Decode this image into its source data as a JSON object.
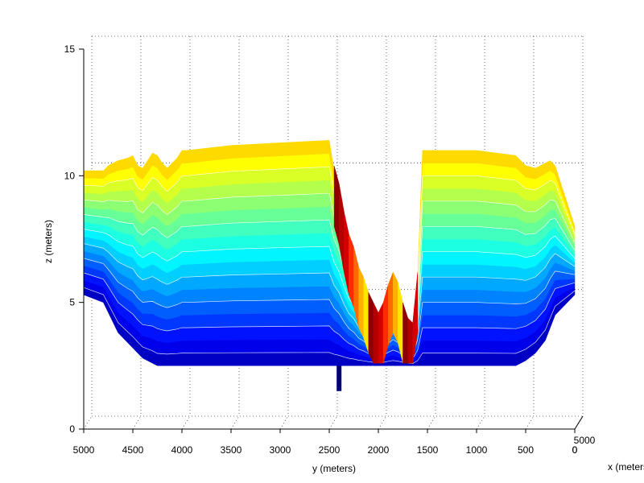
{
  "chart_data": {
    "type": "surface3d",
    "colormap": "jet",
    "xlabel": "x (meters)",
    "ylabel": "y (meters)",
    "zlabel": "z (meters)",
    "y_ticks": [
      5000,
      4500,
      4000,
      3500,
      3000,
      2500,
      2000,
      1500,
      1000,
      500,
      0
    ],
    "z_ticks": [
      0,
      5,
      10,
      15
    ],
    "x_ticks": [
      0,
      5000
    ],
    "ylim": [
      0,
      5000
    ],
    "zlim": [
      0,
      15
    ],
    "grid": true,
    "layer_count": 17,
    "profile": {
      "y": [
        5000,
        4800,
        4750,
        4700,
        4650,
        4550,
        4500,
        4450,
        4400,
        4350,
        4300,
        4250,
        4200,
        4150,
        4100,
        4050,
        4000,
        3950,
        3500,
        3000,
        2500,
        2450,
        2400,
        2350,
        2300,
        2250,
        2200,
        2150,
        2100,
        2050,
        2000,
        1950,
        1900,
        1850,
        1800,
        1750,
        1700,
        1650,
        1600,
        1550,
        1500,
        1000,
        600,
        500,
        400,
        300,
        250,
        200,
        0
      ],
      "top": [
        10.2,
        10.2,
        10.4,
        10.5,
        10.6,
        10.7,
        10.8,
        10.4,
        10.3,
        10.6,
        10.9,
        10.8,
        10.5,
        10.3,
        10.5,
        10.7,
        11.0,
        11.0,
        11.2,
        11.3,
        11.4,
        10.2,
        9.5,
        8.4,
        7.5,
        7.0,
        6.2,
        5.8,
        5.2,
        4.8,
        4.4,
        4.8,
        5.5,
        6.0,
        5.6,
        4.8,
        4.2,
        4.0,
        6.0,
        11.0,
        11.0,
        11.0,
        10.8,
        10.4,
        10.3,
        10.5,
        10.6,
        10.4,
        8.0
      ],
      "bottom": [
        5.3,
        5.0,
        4.6,
        4.2,
        3.8,
        3.4,
        3.2,
        3.0,
        2.8,
        2.7,
        2.6,
        2.5,
        2.5,
        2.5,
        2.5,
        2.5,
        2.5,
        2.5,
        2.5,
        2.5,
        2.5,
        2.5,
        2.5,
        2.5,
        2.5,
        2.5,
        2.5,
        2.5,
        2.5,
        2.5,
        2.5,
        2.5,
        2.5,
        2.5,
        2.5,
        2.5,
        2.5,
        2.5,
        2.5,
        2.5,
        2.5,
        2.5,
        2.5,
        2.7,
        3.0,
        3.5,
        4.0,
        4.5,
        5.3
      ]
    },
    "spike": {
      "y": 2400,
      "z": 1.5
    },
    "hot_region": {
      "y_range": [
        1600,
        2450
      ]
    }
  }
}
